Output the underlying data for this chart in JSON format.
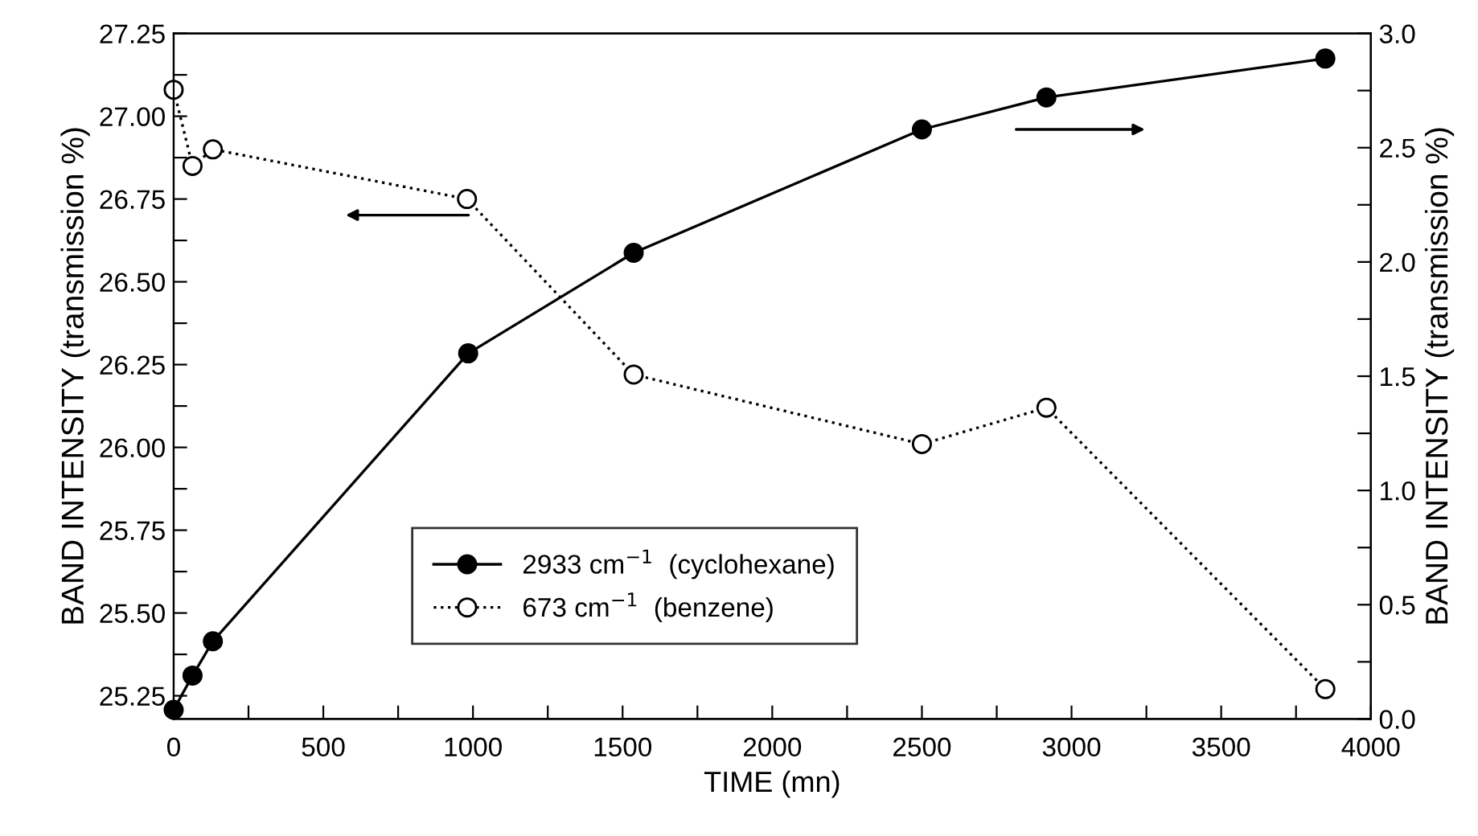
{
  "chart_data": {
    "type": "line",
    "xlabel": "TIME (mn)",
    "ylabel": "BAND INTENSITY (transmission %)",
    "y2label": "BAND INTENSITY (transmission %)",
    "series": [
      {
        "name": "2933 cm$^{−1}$  (cyclohexane)",
        "color": "#000000",
        "axis": "y2",
        "line_style": "solid",
        "marker": "circle",
        "x": [
          0,
          63,
          131,
          984,
          1537,
          2500,
          2916,
          3848
        ],
        "values": [
          0.04,
          0.19,
          0.34,
          1.6,
          2.04,
          2.58,
          2.72,
          2.89
        ]
      },
      {
        "name": "673 cm$^{−1}$  (benzene)",
        "color": "#000000",
        "axis": "y",
        "line_style": "dotted",
        "marker": "circle",
        "x": [
          0,
          63,
          131,
          980,
          1537,
          2500,
          2916,
          3848
        ],
        "values": [
          27.08,
          26.85,
          26.9,
          26.75,
          26.22,
          26.01,
          26.12,
          25.27
        ]
      }
    ],
    "xlim": [
      0,
      4000
    ],
    "xticks": [
      0,
      {
        "value": 250,
        "label": null
      },
      500,
      {
        "value": 750,
        "label": null
      },
      1000,
      {
        "value": 1250,
        "label": null
      },
      1500,
      {
        "value": 1750,
        "label": null
      },
      2000,
      {
        "value": 2250,
        "label": null
      },
      2500,
      {
        "value": 2750,
        "label": null
      },
      3000,
      {
        "value": 3250,
        "label": null
      },
      3500,
      {
        "value": 3750,
        "label": null
      },
      4000
    ],
    "ylim": [
      25.18,
      27.25
    ],
    "yticks": [
      {
        "value": 25.25,
        "label": "25.25"
      },
      {
        "value": 25.375,
        "label": null
      },
      {
        "value": 25.5,
        "label": "25.50"
      },
      {
        "value": 25.625,
        "label": null
      },
      {
        "value": 25.75,
        "label": "25.75"
      },
      {
        "value": 25.875,
        "label": null
      },
      {
        "value": 26.0,
        "label": "26.00"
      },
      {
        "value": 26.125,
        "label": null
      },
      {
        "value": 26.25,
        "label": "26.25"
      },
      {
        "value": 26.375,
        "label": null
      },
      {
        "value": 26.5,
        "label": "26.50"
      },
      {
        "value": 26.625,
        "label": null
      },
      {
        "value": 26.75,
        "label": "26.75"
      },
      {
        "value": 26.875,
        "label": null
      },
      {
        "value": 27.0,
        "label": "27.00"
      },
      {
        "value": 27.125,
        "label": null
      },
      {
        "value": 27.25,
        "label": "27.25"
      }
    ],
    "y2lim": [
      0,
      3.0
    ],
    "y2ticks": [
      {
        "value": 0,
        "label": "0.0"
      },
      {
        "value": 0.25,
        "label": null
      },
      {
        "value": 0.5,
        "label": "0.5"
      },
      {
        "value": 0.75,
        "label": null
      },
      {
        "value": 1.0,
        "label": "1.0"
      },
      {
        "value": 1.25,
        "label": null
      },
      {
        "value": 1.5,
        "label": "1.5"
      },
      {
        "value": 1.75,
        "label": null
      },
      {
        "value": 2.0,
        "label": "2.0"
      },
      {
        "value": 2.25,
        "label": null
      },
      {
        "value": 2.5,
        "label": "2.5"
      },
      {
        "value": 2.75,
        "label": null
      },
      {
        "value": 3.0,
        "label": "3.0"
      }
    ],
    "grid": false,
    "legend": "bottom"
  }
}
